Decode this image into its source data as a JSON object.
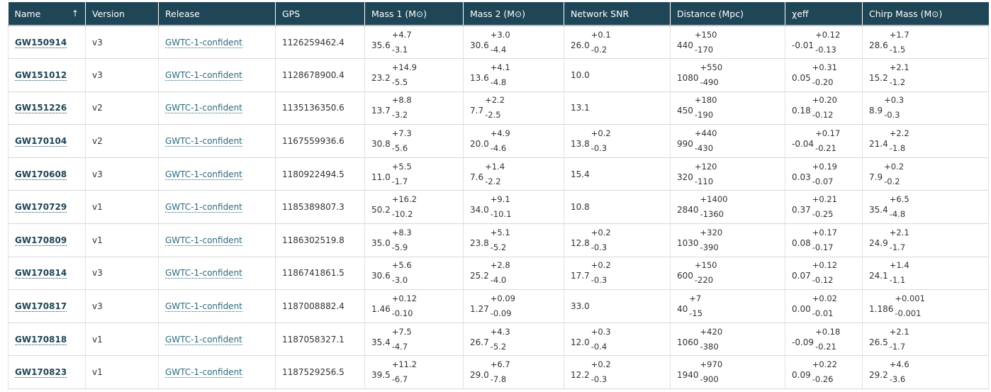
{
  "columns": [
    {
      "label": "Name",
      "sort_indicator": "↑"
    },
    {
      "label": "Version"
    },
    {
      "label": "Release"
    },
    {
      "label": "GPS"
    },
    {
      "label": "Mass 1 (M",
      "unit_symbol": "⊙",
      "suffix": ")"
    },
    {
      "label": "Mass 2 (M",
      "unit_symbol": "⊙",
      "suffix": ")"
    },
    {
      "label": "Network SNR"
    },
    {
      "label": "Distance (Mpc)"
    },
    {
      "label": "χeff"
    },
    {
      "label": "Chirp Mass (M",
      "unit_symbol": "⊙",
      "suffix": ")"
    }
  ],
  "rows": [
    {
      "name": "GW150914",
      "version": "v3",
      "release": "GWTC-1-confident",
      "gps": "1126259462.4",
      "mass1": {
        "c": "35.6",
        "up": "+4.7",
        "dn": "-3.1"
      },
      "mass2": {
        "c": "30.6",
        "up": "+3.0",
        "dn": "-4.4"
      },
      "snr": {
        "c": "26.0",
        "up": "+0.1",
        "dn": "-0.2"
      },
      "distance": {
        "c": "440",
        "up": "+150",
        "dn": "-170"
      },
      "chi": {
        "c": "-0.01",
        "up": "+0.12",
        "dn": "-0.13"
      },
      "chirp": {
        "c": "28.6",
        "up": "+1.7",
        "dn": "-1.5"
      }
    },
    {
      "name": "GW151012",
      "version": "v3",
      "release": "GWTC-1-confident",
      "gps": "1128678900.4",
      "mass1": {
        "c": "23.2",
        "up": "+14.9",
        "dn": "-5.5"
      },
      "mass2": {
        "c": "13.6",
        "up": "+4.1",
        "dn": "-4.8"
      },
      "snr": {
        "c": "10.0"
      },
      "distance": {
        "c": "1080",
        "up": "+550",
        "dn": "-490"
      },
      "chi": {
        "c": "0.05",
        "up": "+0.31",
        "dn": "-0.20"
      },
      "chirp": {
        "c": "15.2",
        "up": "+2.1",
        "dn": "-1.2"
      }
    },
    {
      "name": "GW151226",
      "version": "v2",
      "release": "GWTC-1-confident",
      "gps": "1135136350.6",
      "mass1": {
        "c": "13.7",
        "up": "+8.8",
        "dn": "-3.2"
      },
      "mass2": {
        "c": "7.7",
        "up": "+2.2",
        "dn": "-2.5"
      },
      "snr": {
        "c": "13.1"
      },
      "distance": {
        "c": "450",
        "up": "+180",
        "dn": "-190"
      },
      "chi": {
        "c": "0.18",
        "up": "+0.20",
        "dn": "-0.12"
      },
      "chirp": {
        "c": "8.9",
        "up": "+0.3",
        "dn": "-0.3"
      }
    },
    {
      "name": "GW170104",
      "version": "v2",
      "release": "GWTC-1-confident",
      "gps": "1167559936.6",
      "mass1": {
        "c": "30.8",
        "up": "+7.3",
        "dn": "-5.6"
      },
      "mass2": {
        "c": "20.0",
        "up": "+4.9",
        "dn": "-4.6"
      },
      "snr": {
        "c": "13.8",
        "up": "+0.2",
        "dn": "-0.3"
      },
      "distance": {
        "c": "990",
        "up": "+440",
        "dn": "-430"
      },
      "chi": {
        "c": "-0.04",
        "up": "+0.17",
        "dn": "-0.21"
      },
      "chirp": {
        "c": "21.4",
        "up": "+2.2",
        "dn": "-1.8"
      }
    },
    {
      "name": "GW170608",
      "version": "v3",
      "release": "GWTC-1-confident",
      "gps": "1180922494.5",
      "mass1": {
        "c": "11.0",
        "up": "+5.5",
        "dn": "-1.7"
      },
      "mass2": {
        "c": "7.6",
        "up": "+1.4",
        "dn": "-2.2"
      },
      "snr": {
        "c": "15.4"
      },
      "distance": {
        "c": "320",
        "up": "+120",
        "dn": "-110"
      },
      "chi": {
        "c": "0.03",
        "up": "+0.19",
        "dn": "-0.07"
      },
      "chirp": {
        "c": "7.9",
        "up": "+0.2",
        "dn": "-0.2"
      }
    },
    {
      "name": "GW170729",
      "version": "v1",
      "release": "GWTC-1-confident",
      "gps": "1185389807.3",
      "mass1": {
        "c": "50.2",
        "up": "+16.2",
        "dn": "-10.2"
      },
      "mass2": {
        "c": "34.0",
        "up": "+9.1",
        "dn": "-10.1"
      },
      "snr": {
        "c": "10.8"
      },
      "distance": {
        "c": "2840",
        "up": "+1400",
        "dn": "-1360"
      },
      "chi": {
        "c": "0.37",
        "up": "+0.21",
        "dn": "-0.25"
      },
      "chirp": {
        "c": "35.4",
        "up": "+6.5",
        "dn": "-4.8"
      }
    },
    {
      "name": "GW170809",
      "version": "v1",
      "release": "GWTC-1-confident",
      "gps": "1186302519.8",
      "mass1": {
        "c": "35.0",
        "up": "+8.3",
        "dn": "-5.9"
      },
      "mass2": {
        "c": "23.8",
        "up": "+5.1",
        "dn": "-5.2"
      },
      "snr": {
        "c": "12.8",
        "up": "+0.2",
        "dn": "-0.3"
      },
      "distance": {
        "c": "1030",
        "up": "+320",
        "dn": "-390"
      },
      "chi": {
        "c": "0.08",
        "up": "+0.17",
        "dn": "-0.17"
      },
      "chirp": {
        "c": "24.9",
        "up": "+2.1",
        "dn": "-1.7"
      }
    },
    {
      "name": "GW170814",
      "version": "v3",
      "release": "GWTC-1-confident",
      "gps": "1186741861.5",
      "mass1": {
        "c": "30.6",
        "up": "+5.6",
        "dn": "-3.0"
      },
      "mass2": {
        "c": "25.2",
        "up": "+2.8",
        "dn": "-4.0"
      },
      "snr": {
        "c": "17.7",
        "up": "+0.2",
        "dn": "-0.3"
      },
      "distance": {
        "c": "600",
        "up": "+150",
        "dn": "-220"
      },
      "chi": {
        "c": "0.07",
        "up": "+0.12",
        "dn": "-0.12"
      },
      "chirp": {
        "c": "24.1",
        "up": "+1.4",
        "dn": "-1.1"
      }
    },
    {
      "name": "GW170817",
      "version": "v3",
      "release": "GWTC-1-confident",
      "gps": "1187008882.4",
      "mass1": {
        "c": "1.46",
        "up": "+0.12",
        "dn": "-0.10"
      },
      "mass2": {
        "c": "1.27",
        "up": "+0.09",
        "dn": "-0.09"
      },
      "snr": {
        "c": "33.0"
      },
      "distance": {
        "c": "40",
        "up": "+7",
        "dn": "-15"
      },
      "chi": {
        "c": "0.00",
        "up": "+0.02",
        "dn": "-0.01"
      },
      "chirp": {
        "c": "1.186",
        "up": "+0.001",
        "dn": "-0.001"
      }
    },
    {
      "name": "GW170818",
      "version": "v1",
      "release": "GWTC-1-confident",
      "gps": "1187058327.1",
      "mass1": {
        "c": "35.4",
        "up": "+7.5",
        "dn": "-4.7"
      },
      "mass2": {
        "c": "26.7",
        "up": "+4.3",
        "dn": "-5.2"
      },
      "snr": {
        "c": "12.0",
        "up": "+0.3",
        "dn": "-0.4"
      },
      "distance": {
        "c": "1060",
        "up": "+420",
        "dn": "-380"
      },
      "chi": {
        "c": "-0.09",
        "up": "+0.18",
        "dn": "-0.21"
      },
      "chirp": {
        "c": "26.5",
        "up": "+2.1",
        "dn": "-1.7"
      }
    },
    {
      "name": "GW170823",
      "version": "v1",
      "release": "GWTC-1-confident",
      "gps": "1187529256.5",
      "mass1": {
        "c": "39.5",
        "up": "+11.2",
        "dn": "-6.7"
      },
      "mass2": {
        "c": "29.0",
        "up": "+6.7",
        "dn": "-7.8"
      },
      "snr": {
        "c": "12.2",
        "up": "+0.2",
        "dn": "-0.3"
      },
      "distance": {
        "c": "1940",
        "up": "+970",
        "dn": "-900"
      },
      "chi": {
        "c": "0.09",
        "up": "+0.22",
        "dn": "-0.26"
      },
      "chirp": {
        "c": "29.2",
        "up": "+4.6",
        "dn": "-3.6"
      }
    }
  ],
  "colors": {
    "header_bg": "#1f4657",
    "header_text": "#ffffff",
    "link": "#1f4657",
    "release_link": "#2c6a7e"
  }
}
